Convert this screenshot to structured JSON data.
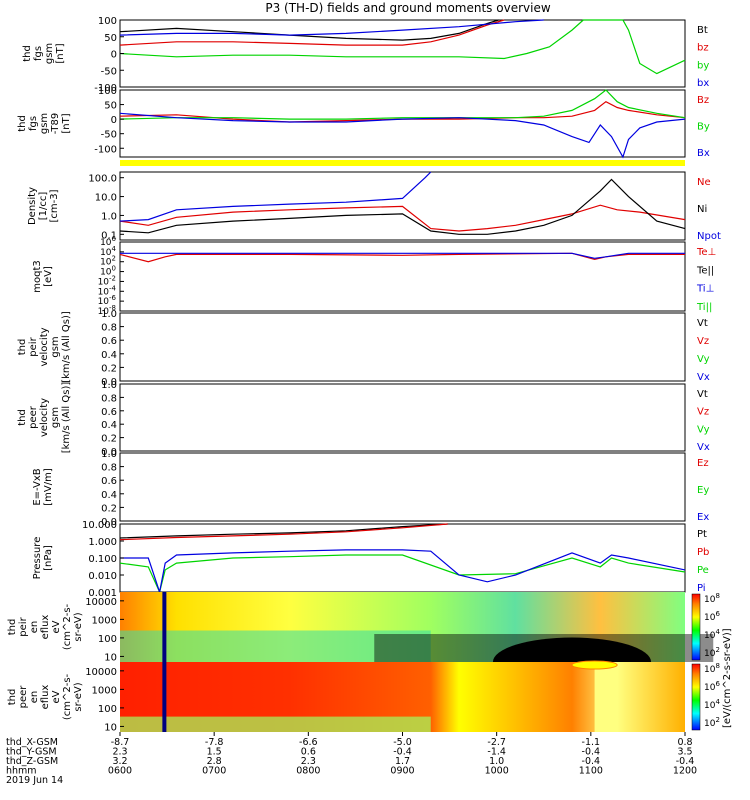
{
  "title": "P3 (TH-D) fields and ground moments overview",
  "colors": {
    "black": "#000000",
    "red": "#e00000",
    "green": "#00d400",
    "blue": "#0000e0",
    "yellow": "#ffff00",
    "spectro_low": "#80ff80",
    "spectro_mid": "#ffff30",
    "spectro_high": "#ff3000"
  },
  "chart_data": [
    {
      "type": "line",
      "panel": "fgs",
      "ylabel": [
        "thd",
        "fgs",
        "gsm",
        "[nT]"
      ],
      "ylim": [
        -100,
        100
      ],
      "yticks": [
        "100",
        "50",
        "0",
        "-50",
        "-100"
      ],
      "legend": [
        {
          "name": "Bt",
          "color": "#000000"
        },
        {
          "name": "bz",
          "color": "#e00000"
        },
        {
          "name": "by",
          "color": "#00d400"
        },
        {
          "name": "bx",
          "color": "#0000e0"
        }
      ],
      "series": [
        {
          "name": "Bt",
          "color": "#000000",
          "x": [
            0,
            0.1,
            0.2,
            0.3,
            0.4,
            0.5,
            0.55,
            0.6,
            0.65,
            0.67
          ],
          "y": [
            65,
            75,
            65,
            55,
            45,
            40,
            45,
            60,
            90,
            100
          ]
        },
        {
          "name": "bz",
          "color": "#e00000",
          "x": [
            0,
            0.1,
            0.2,
            0.3,
            0.4,
            0.5,
            0.55,
            0.6,
            0.65,
            0.68
          ],
          "y": [
            25,
            35,
            35,
            30,
            25,
            25,
            35,
            55,
            85,
            100
          ]
        },
        {
          "name": "by",
          "color": "#00d400",
          "x": [
            0,
            0.05,
            0.1,
            0.2,
            0.3,
            0.4,
            0.5,
            0.6,
            0.68,
            0.72,
            0.76,
            0.8,
            0.82,
            0.85,
            0.86,
            0.89,
            0.9,
            0.92,
            0.95,
            1.0
          ],
          "y": [
            0,
            -5,
            -10,
            -5,
            -5,
            -10,
            -10,
            -10,
            -15,
            0,
            20,
            70,
            100,
            100,
            100,
            100,
            70,
            -30,
            -60,
            -20
          ]
        },
        {
          "name": "bx",
          "color": "#0000e0",
          "x": [
            0,
            0.1,
            0.2,
            0.3,
            0.4,
            0.5,
            0.6,
            0.7,
            0.75
          ],
          "y": [
            55,
            60,
            60,
            55,
            60,
            70,
            80,
            95,
            100
          ]
        }
      ]
    },
    {
      "type": "line",
      "panel": "fgs_detrended",
      "ylabel": [
        "thd",
        "fgs",
        "gsm",
        "-T89",
        "[nT]"
      ],
      "ylim": [
        -130,
        100
      ],
      "yticks": [
        "100",
        "50",
        "0",
        "-50",
        "-100"
      ],
      "legend": [
        {
          "name": "Bz",
          "color": "#e00000"
        },
        {
          "name": "By",
          "color": "#00d400"
        },
        {
          "name": "Bx",
          "color": "#0000e0"
        }
      ],
      "series": [
        {
          "name": "Bz",
          "color": "#e00000",
          "x": [
            0,
            0.1,
            0.2,
            0.3,
            0.4,
            0.5,
            0.6,
            0.7,
            0.75,
            0.8,
            0.84,
            0.86,
            0.88,
            0.9,
            0.95,
            1.0
          ],
          "y": [
            10,
            15,
            0,
            -10,
            -5,
            0,
            0,
            5,
            5,
            10,
            30,
            60,
            40,
            30,
            15,
            5
          ]
        },
        {
          "name": "By",
          "color": "#00d400",
          "x": [
            0,
            0.1,
            0.2,
            0.3,
            0.4,
            0.5,
            0.6,
            0.7,
            0.75,
            0.8,
            0.84,
            0.86,
            0.88,
            0.9,
            0.95,
            1.0
          ],
          "y": [
            0,
            5,
            5,
            0,
            0,
            5,
            5,
            5,
            10,
            30,
            70,
            100,
            60,
            40,
            20,
            5
          ]
        },
        {
          "name": "Bx",
          "color": "#0000e0",
          "x": [
            0,
            0.1,
            0.2,
            0.3,
            0.4,
            0.5,
            0.6,
            0.7,
            0.75,
            0.8,
            0.83,
            0.85,
            0.87,
            0.89,
            0.9,
            0.92,
            0.95,
            1.0
          ],
          "y": [
            20,
            5,
            -5,
            -10,
            -10,
            0,
            5,
            -5,
            -20,
            -60,
            -80,
            -20,
            -60,
            -130,
            -70,
            -30,
            -10,
            0
          ]
        }
      ]
    },
    {
      "type": "line",
      "panel": "density",
      "yscale": "log",
      "ylabel": [
        "Density",
        "[1/cc]",
        "[cm-3]"
      ],
      "ylim": [
        0.05,
        200
      ],
      "yticks": [
        "100.0",
        "10.0",
        "1.0",
        "0.1"
      ],
      "legend": [
        {
          "name": "Ne",
          "color": "#e00000"
        },
        {
          "name": "Ni",
          "color": "#000000"
        },
        {
          "name": "Npot",
          "color": "#0000e0"
        }
      ],
      "series": [
        {
          "name": "Ne",
          "color": "#e00000",
          "x": [
            0,
            0.05,
            0.1,
            0.2,
            0.3,
            0.4,
            0.5,
            0.55,
            0.6,
            0.65,
            0.7,
            0.75,
            0.8,
            0.85,
            0.88,
            0.92,
            1.0
          ],
          "y": [
            0.5,
            0.3,
            0.8,
            1.5,
            2,
            2.5,
            3,
            0.2,
            0.15,
            0.2,
            0.3,
            0.6,
            1.2,
            3.5,
            2,
            1.5,
            0.6
          ]
        },
        {
          "name": "Ni",
          "color": "#000000",
          "x": [
            0,
            0.05,
            0.1,
            0.2,
            0.3,
            0.4,
            0.5,
            0.55,
            0.6,
            0.65,
            0.7,
            0.75,
            0.8,
            0.85,
            0.87,
            0.9,
            0.95,
            1.0
          ],
          "y": [
            0.15,
            0.12,
            0.3,
            0.5,
            0.7,
            1,
            1.2,
            0.15,
            0.1,
            0.1,
            0.15,
            0.3,
            1,
            20,
            80,
            10,
            0.5,
            0.2
          ]
        },
        {
          "name": "Npot",
          "color": "#0000e0",
          "x": [
            0,
            0.05,
            0.1,
            0.2,
            0.3,
            0.4,
            0.5,
            0.54,
            0.55
          ],
          "y": [
            0.5,
            0.6,
            2,
            3,
            4,
            5,
            8,
            100,
            200
          ]
        }
      ]
    },
    {
      "type": "line",
      "panel": "temperature",
      "yscale": "log",
      "ylabel": [
        "moqt3",
        "[eV]"
      ],
      "ylim": [
        1e-08,
        1000000.0
      ],
      "yticks": [
        "10^6",
        "10^4",
        "10^2",
        "10^0",
        "10^-2",
        "10^-4",
        "10^-6",
        "10^-8"
      ],
      "legend": [
        {
          "name": "Te⊥",
          "color": "#e00000"
        },
        {
          "name": "Te||",
          "color": "#000000"
        },
        {
          "name": "Ti⊥",
          "color": "#0000e0"
        },
        {
          "name": "Ti||",
          "color": "#00d400"
        }
      ],
      "series": [
        {
          "name": "Te⊥",
          "color": "#e00000",
          "x": [
            0,
            0.05,
            0.08,
            0.1,
            0.3,
            0.5,
            0.6,
            0.8,
            0.84,
            0.86,
            0.9,
            1.0
          ],
          "y": [
            3000,
            100,
            1000,
            3000,
            3000,
            2000,
            3000,
            5000,
            300,
            1000,
            3000,
            3000
          ]
        },
        {
          "name": "Ti⊥",
          "color": "#0000e0",
          "x": [
            0,
            0.2,
            0.5,
            0.8,
            0.84,
            0.86,
            0.9,
            1.0
          ],
          "y": [
            5000,
            5000,
            5000,
            5000,
            500,
            1000,
            5000,
            5000
          ]
        }
      ]
    },
    {
      "type": "line",
      "panel": "peir_velocity",
      "ylabel": [
        "thd",
        "peir",
        "velocity",
        "gsm",
        "[km/s (All Qs)]"
      ],
      "ylim": [
        0,
        1
      ],
      "yticks": [
        "1.0",
        "0.8",
        "0.6",
        "0.4",
        "0.2",
        "0.0"
      ],
      "legend": [
        {
          "name": "Vt",
          "color": "#000000"
        },
        {
          "name": "Vz",
          "color": "#e00000"
        },
        {
          "name": "Vy",
          "color": "#00d400"
        },
        {
          "name": "Vx",
          "color": "#0000e0"
        }
      ],
      "series": []
    },
    {
      "type": "line",
      "panel": "peer_velocity",
      "ylabel": [
        "thd",
        "peer",
        "velocity",
        "gsm",
        "[km/s (All Qs)]"
      ],
      "ylim": [
        0,
        1
      ],
      "yticks": [
        "1.0",
        "0.8",
        "0.6",
        "0.4",
        "0.2",
        "0.0"
      ],
      "legend": [
        {
          "name": "Vt",
          "color": "#000000"
        },
        {
          "name": "Vz",
          "color": "#e00000"
        },
        {
          "name": "Vy",
          "color": "#00d400"
        },
        {
          "name": "Vx",
          "color": "#0000e0"
        }
      ],
      "series": []
    },
    {
      "type": "line",
      "panel": "efield",
      "ylabel": [
        "E=-VxB",
        "[mV/m]"
      ],
      "ylim": [
        0,
        1
      ],
      "yticks": [
        "1.0",
        "0.8",
        "0.6",
        "0.4",
        "0.2",
        "0.0"
      ],
      "legend": [
        {
          "name": "Ez",
          "color": "#e00000"
        },
        {
          "name": "Ey",
          "color": "#00d400"
        },
        {
          "name": "Ex",
          "color": "#0000e0"
        }
      ],
      "series": []
    },
    {
      "type": "line",
      "panel": "pressure",
      "yscale": "log",
      "ylabel": [
        "Pressure",
        "[nPa]"
      ],
      "ylim": [
        0.001,
        10
      ],
      "yticks": [
        "10.000",
        "1.000",
        "0.100",
        "0.010",
        "0.001"
      ],
      "legend": [
        {
          "name": "Pt",
          "color": "#000000"
        },
        {
          "name": "Pb",
          "color": "#e00000"
        },
        {
          "name": "Pe",
          "color": "#00d400"
        },
        {
          "name": "Pi",
          "color": "#0000e0"
        }
      ],
      "series": [
        {
          "name": "Pt",
          "color": "#000000",
          "x": [
            0,
            0.1,
            0.2,
            0.3,
            0.4,
            0.5,
            0.58
          ],
          "y": [
            1.5,
            2,
            2.5,
            3,
            4,
            7,
            12
          ]
        },
        {
          "name": "Pb",
          "color": "#e00000",
          "x": [
            0,
            0.1,
            0.2,
            0.3,
            0.4,
            0.5,
            0.58
          ],
          "y": [
            1.2,
            1.6,
            2,
            2.5,
            3.5,
            6,
            11
          ]
        },
        {
          "name": "Pe",
          "color": "#00d400",
          "x": [
            0,
            0.05,
            0.07,
            0.08,
            0.1,
            0.2,
            0.3,
            0.4,
            0.5,
            0.6,
            0.7,
            0.8,
            0.85,
            0.87,
            0.9,
            1.0
          ],
          "y": [
            0.05,
            0.03,
            0.001,
            0.02,
            0.05,
            0.1,
            0.12,
            0.15,
            0.15,
            0.01,
            0.012,
            0.1,
            0.03,
            0.1,
            0.05,
            0.015
          ]
        },
        {
          "name": "Pi",
          "color": "#0000e0",
          "x": [
            0,
            0.05,
            0.07,
            0.08,
            0.1,
            0.2,
            0.3,
            0.4,
            0.5,
            0.55,
            0.6,
            0.65,
            0.7,
            0.8,
            0.85,
            0.87,
            0.9,
            1.0
          ],
          "y": [
            0.1,
            0.1,
            0.001,
            0.05,
            0.15,
            0.2,
            0.25,
            0.3,
            0.3,
            0.25,
            0.01,
            0.004,
            0.01,
            0.2,
            0.05,
            0.15,
            0.1,
            0.02
          ]
        }
      ]
    },
    {
      "type": "heatmap",
      "panel": "peir_eflux",
      "ylabel": [
        "thd",
        "peir",
        "en",
        "eflux",
        "eV",
        "(cm^2-s-",
        "sr-eV)"
      ],
      "yscale": "log",
      "ylim": [
        5,
        30000
      ],
      "yticks": [
        "10000",
        "1000",
        "100",
        "10"
      ],
      "colorbar": {
        "label": "[eV/(cm^2-s-sr-eV)]",
        "ticks": [
          "10^8",
          "10^6",
          "10^4",
          "10^2"
        ]
      }
    },
    {
      "type": "heatmap",
      "panel": "peer_eflux",
      "ylabel": [
        "thd",
        "peer",
        "en",
        "eflux",
        "eV",
        "(cm^2-s-",
        "sr-eV)"
      ],
      "yscale": "log",
      "ylim": [
        5,
        30000
      ],
      "yticks": [
        "10000",
        "1000",
        "100",
        "10"
      ],
      "colorbar": {
        "label": "[eV/(cm^2-s-sr-eV)]",
        "ticks": [
          "10^8",
          "10^6",
          "10^4",
          "10^2"
        ]
      }
    }
  ],
  "xaxis": {
    "rows": [
      {
        "label": "thd_X-GSM",
        "values": [
          "-8.7",
          "-7.8",
          "-6.6",
          "-5.0",
          "-2.7",
          "-1.1",
          "0.8"
        ]
      },
      {
        "label": "thd_Y-GSM",
        "values": [
          "2.3",
          "1.5",
          "0.6",
          "-0.4",
          "-1.4",
          "-0.4",
          "3.5"
        ]
      },
      {
        "label": "thd_Z-GSM",
        "values": [
          "3.2",
          "2.8",
          "2.3",
          "1.7",
          "1.0",
          "-0.4",
          "-0.4"
        ]
      },
      {
        "label": "hhmm",
        "values": [
          "0600",
          "0700",
          "0800",
          "0900",
          "1000",
          "1100",
          "1200"
        ]
      }
    ],
    "date": "2019 Jun 14"
  }
}
